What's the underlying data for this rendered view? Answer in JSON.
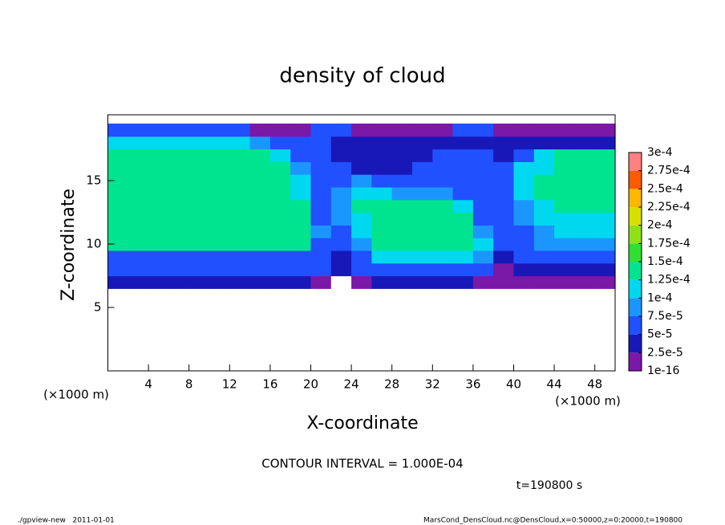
{
  "chart_data": {
    "type": "heatmap",
    "title": "density of cloud",
    "xlabel": "X-coordinate",
    "ylabel": "Z-coordinate",
    "xunit": "(×1000 m)",
    "yunit": "(×1000 m)",
    "note": "CONTOUR INTERVAL = 1.000E-04",
    "time": "t=190800 s",
    "footer_left": "./gpview-new   2011-01-01",
    "footer_right": "MarsCond_DensCloud.nc@DensCloud,x=0:50000,z=0:20000,t=190800",
    "xlim": [
      0,
      50
    ],
    "ylim": [
      0,
      20
    ],
    "xticks": [
      4,
      8,
      12,
      16,
      20,
      24,
      28,
      32,
      36,
      40,
      44,
      48
    ],
    "yticks": [
      5,
      10,
      15
    ],
    "x": [
      1,
      3,
      5,
      7,
      9,
      11,
      13,
      15,
      17,
      19,
      21,
      23,
      25,
      27,
      29,
      31,
      33,
      35,
      37,
      39,
      41,
      43,
      45,
      47,
      49
    ],
    "z": [
      7,
      8,
      9,
      10,
      11,
      12,
      13,
      14,
      15,
      16,
      17,
      18,
      19
    ],
    "values": [
      [
        3e-05,
        3e-05,
        3e-05,
        3e-05,
        3e-05,
        3e-05,
        3e-05,
        3e-05,
        3e-05,
        3e-05,
        2e-05,
        0,
        2e-05,
        3e-05,
        3e-05,
        3e-05,
        3e-05,
        3e-05,
        2e-05,
        1e-05,
        2e-05,
        2e-05,
        2e-05,
        2e-05,
        2e-05
      ],
      [
        6e-05,
        6e-05,
        6e-05,
        6e-05,
        6e-05,
        6e-05,
        6e-05,
        6e-05,
        6e-05,
        6e-05,
        5e-05,
        3e-05,
        5e-05,
        6e-05,
        6e-05,
        6e-05,
        6e-05,
        6e-05,
        5e-05,
        2e-05,
        4e-05,
        4e-05,
        4e-05,
        4e-05,
        4e-05
      ],
      [
        7e-05,
        7e-05,
        7e-05,
        7e-05,
        7e-05,
        7e-05,
        7e-05,
        7e-05,
        7e-05,
        7e-05,
        5e-05,
        4e-05,
        6e-05,
        0.00011,
        0.00011,
        0.00011,
        0.00011,
        0.00011,
        9e-05,
        3e-05,
        6e-05,
        6e-05,
        6e-05,
        6e-05,
        6e-05
      ],
      [
        0.000125,
        0.000125,
        0.000125,
        0.000125,
        0.000125,
        0.000125,
        0.000125,
        0.000125,
        0.000125,
        0.000125,
        7e-05,
        5e-05,
        8e-05,
        0.000135,
        0.000135,
        0.000135,
        0.000135,
        0.00013,
        0.00011,
        6e-05,
        6e-05,
        8e-05,
        9e-05,
        9e-05,
        9e-05
      ],
      [
        0.00013,
        0.00013,
        0.00013,
        0.00013,
        0.00013,
        0.00013,
        0.00013,
        0.00013,
        0.00013,
        0.00013,
        8e-05,
        6e-05,
        0.0001,
        0.00014,
        0.00014,
        0.00014,
        0.00014,
        0.000135,
        9e-05,
        5e-05,
        7e-05,
        9e-05,
        0.00011,
        0.00011,
        0.00011
      ],
      [
        0.00013,
        0.00013,
        0.00013,
        0.00013,
        0.00013,
        0.00013,
        0.00013,
        0.00013,
        0.00013,
        0.00013,
        7e-05,
        8e-05,
        0.00012,
        0.000145,
        0.000145,
        0.000145,
        0.000145,
        0.00013,
        7e-05,
        5e-05,
        8e-05,
        0.0001,
        0.00012,
        0.00012,
        0.00012
      ],
      [
        0.000135,
        0.000135,
        0.000135,
        0.000135,
        0.000135,
        0.000135,
        0.000135,
        0.000135,
        0.000135,
        0.000135,
        6e-05,
        9e-05,
        0.00013,
        0.00014,
        0.000145,
        0.000145,
        0.000145,
        0.00011,
        6e-05,
        5e-05,
        9e-05,
        0.00012,
        0.00013,
        0.00013,
        0.00013
      ],
      [
        0.000135,
        0.000135,
        0.000135,
        0.000135,
        0.000135,
        0.000135,
        0.000135,
        0.000135,
        0.000135,
        0.00011,
        5e-05,
        8e-05,
        0.00012,
        0.00011,
        9e-05,
        9e-05,
        9e-05,
        6e-05,
        5e-05,
        6e-05,
        0.0001,
        0.00013,
        0.00013,
        0.00013,
        0.00013
      ],
      [
        0.00014,
        0.00014,
        0.00014,
        0.00014,
        0.00014,
        0.00014,
        0.00014,
        0.00014,
        0.00014,
        0.0001,
        5e-05,
        6e-05,
        8e-05,
        6e-05,
        5e-05,
        5e-05,
        5e-05,
        6e-05,
        5e-05,
        7e-05,
        0.00011,
        0.00013,
        0.00014,
        0.00014,
        0.00014
      ],
      [
        0.000145,
        0.000145,
        0.000145,
        0.000145,
        0.000145,
        0.000145,
        0.000145,
        0.000145,
        0.00014,
        9e-05,
        6e-05,
        6e-05,
        4e-05,
        4e-05,
        4e-05,
        5e-05,
        6e-05,
        6e-05,
        5e-05,
        6e-05,
        0.00012,
        0.00011,
        0.00014,
        0.00014,
        0.00014
      ],
      [
        0.000145,
        0.000145,
        0.000145,
        0.000145,
        0.000145,
        0.000145,
        0.000145,
        0.000145,
        0.00011,
        6e-05,
        5e-05,
        4e-05,
        3e-05,
        3e-05,
        3e-05,
        3e-05,
        5e-05,
        7e-05,
        5e-05,
        4e-05,
        5e-05,
        0.00011,
        0.00013,
        0.00013,
        0.00013
      ],
      [
        0.00012,
        0.00012,
        0.00012,
        0.00012,
        0.00012,
        0.00012,
        0.00012,
        8e-05,
        5e-05,
        5e-05,
        6e-05,
        3e-05,
        3e-05,
        3e-05,
        3e-05,
        3e-05,
        3e-05,
        3e-05,
        4e-05,
        4e-05,
        4e-05,
        4e-05,
        4e-05,
        4e-05,
        4e-05
      ],
      [
        5e-05,
        5e-05,
        5e-05,
        5e-05,
        5e-05,
        5e-05,
        5e-05,
        2e-05,
        2e-05,
        2e-05,
        5e-05,
        5e-05,
        2e-05,
        2e-05,
        2e-05,
        2e-05,
        2e-05,
        5e-05,
        5e-05,
        2e-05,
        2e-05,
        2e-05,
        2e-05,
        2e-05,
        2e-05
      ]
    ],
    "levels": [
      {
        "value": 1e-16,
        "label": "1e-16"
      },
      {
        "value": 2.5e-05,
        "label": "2.5e-5"
      },
      {
        "value": 5e-05,
        "label": "5e-5"
      },
      {
        "value": 7.5e-05,
        "label": "7.5e-5"
      },
      {
        "value": 0.0001,
        "label": "1e-4"
      },
      {
        "value": 0.000125,
        "label": "1.25e-4"
      },
      {
        "value": 0.00015,
        "label": "1.5e-4"
      },
      {
        "value": 0.000175,
        "label": "1.75e-4"
      },
      {
        "value": 0.0002,
        "label": "2e-4"
      },
      {
        "value": 0.000225,
        "label": "2.25e-4"
      },
      {
        "value": 0.00025,
        "label": "2.5e-4"
      },
      {
        "value": 0.000275,
        "label": "2.75e-4"
      },
      {
        "value": 0.0003,
        "label": "3e-4"
      }
    ],
    "colors": [
      "#7a18a8",
      "#1818b8",
      "#2050ff",
      "#1c96ff",
      "#00d8f0",
      "#00e490",
      "#30e030",
      "#90e018",
      "#d8e000",
      "#ffb800",
      "#ff5a00",
      "#ff8080"
    ]
  }
}
